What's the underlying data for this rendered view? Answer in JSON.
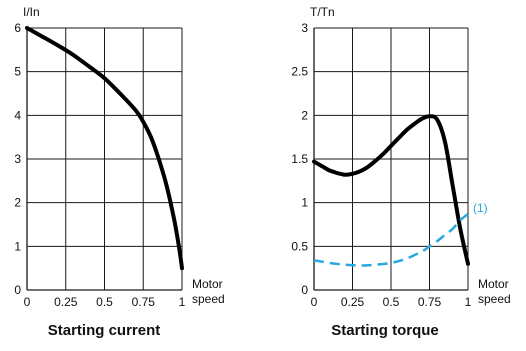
{
  "chart_data": [
    {
      "type": "line",
      "title": "Starting current",
      "ylabel": "I/In",
      "xlabel": "Motor\nspeed",
      "xlim": [
        0,
        1
      ],
      "ylim": [
        0,
        6
      ],
      "grid": true,
      "xticks": [
        "0",
        "0.25",
        "0.5",
        "0.75",
        "1"
      ],
      "yticks": [
        "0",
        "1",
        "2",
        "3",
        "4",
        "5",
        "6"
      ],
      "series": [
        {
          "style": "solid",
          "color": "#000000",
          "x": [
            0,
            0.1,
            0.2,
            0.3,
            0.4,
            0.5,
            0.6,
            0.7,
            0.75,
            0.8,
            0.85,
            0.9,
            0.95,
            0.98,
            1.0
          ],
          "y": [
            6.0,
            5.8,
            5.6,
            5.38,
            5.12,
            4.85,
            4.5,
            4.12,
            3.85,
            3.5,
            3.0,
            2.4,
            1.6,
            1.0,
            0.5
          ]
        }
      ]
    },
    {
      "type": "line",
      "title": "Starting torque",
      "ylabel": "T/Tn",
      "xlabel": "Motor\nspeed",
      "xlim": [
        0,
        1
      ],
      "ylim": [
        0,
        3
      ],
      "grid": true,
      "xticks": [
        "0",
        "0.25",
        "0.5",
        "0.75",
        "1"
      ],
      "yticks": [
        "0",
        "0.5",
        "1",
        "1.5",
        "2",
        "2.5",
        "3"
      ],
      "series": [
        {
          "style": "solid",
          "color": "#000000",
          "x": [
            0,
            0.05,
            0.1,
            0.15,
            0.2,
            0.25,
            0.3,
            0.35,
            0.4,
            0.45,
            0.5,
            0.55,
            0.6,
            0.65,
            0.7,
            0.75,
            0.8,
            0.85,
            0.9,
            0.95,
            1.0
          ],
          "y": [
            1.47,
            1.42,
            1.37,
            1.34,
            1.32,
            1.33,
            1.36,
            1.41,
            1.48,
            1.56,
            1.65,
            1.74,
            1.83,
            1.9,
            1.96,
            1.99,
            1.95,
            1.7,
            1.2,
            0.7,
            0.3
          ]
        },
        {
          "name": "(1)",
          "style": "dashed",
          "color": "#29a8e0",
          "x": [
            0,
            0.1,
            0.2,
            0.3,
            0.4,
            0.5,
            0.6,
            0.7,
            0.75,
            0.8,
            0.85,
            0.9,
            0.95,
            1.0
          ],
          "y": [
            0.34,
            0.31,
            0.29,
            0.28,
            0.29,
            0.31,
            0.36,
            0.44,
            0.5,
            0.56,
            0.63,
            0.7,
            0.8,
            0.87
          ]
        }
      ]
    }
  ]
}
